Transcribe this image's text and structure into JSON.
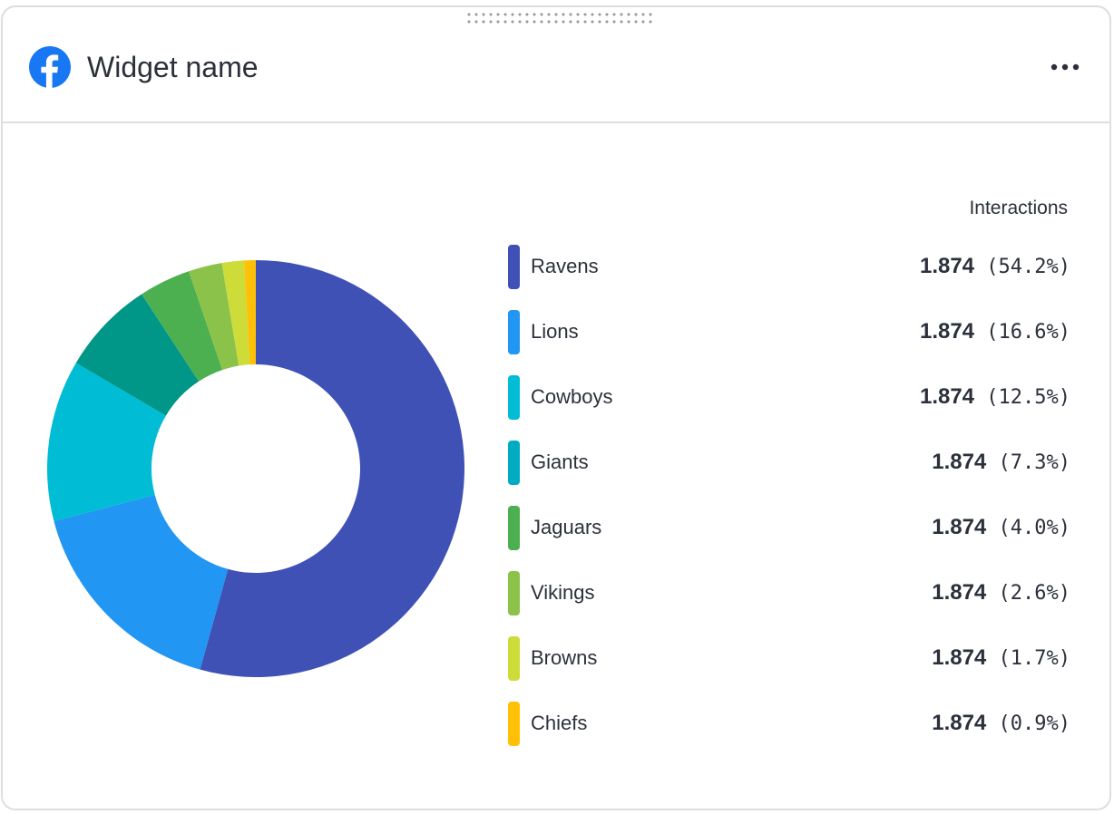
{
  "widget": {
    "title": "Widget name",
    "icon": "facebook-icon",
    "menu_icon": "more-horizontal-icon",
    "drag_icon": "drag-handle-icon"
  },
  "chart_data": {
    "type": "pie",
    "variant": "donut",
    "value_header": "Interactions",
    "categories": [
      "Ravens",
      "Lions",
      "Cowboys",
      "Giants",
      "Jaguars",
      "Vikings",
      "Browns",
      "Chiefs"
    ],
    "values": [
      54.2,
      16.6,
      12.5,
      7.3,
      4.0,
      2.6,
      1.7,
      0.9
    ],
    "value_labels": [
      "1.874",
      "1.874",
      "1.874",
      "1.874",
      "1.874",
      "1.874",
      "1.874",
      "1.874"
    ],
    "percent_labels": [
      "(54.2%)",
      "(16.6%)",
      "(12.5%)",
      "(7.3%)",
      "(4.0%)",
      "(2.6%)",
      "(1.7%)",
      "(0.9%)"
    ],
    "colors": [
      "#3f51b5",
      "#2196f3",
      "#00bcd4",
      "#00acc1",
      "#4caf50",
      "#8bc34a",
      "#cddc39",
      "#ffc107"
    ],
    "segment_colors": [
      "#3f51b5",
      "#2196f3",
      "#00bcd4",
      "#009688",
      "#4caf50",
      "#8bc34a",
      "#cddc39",
      "#ffc107"
    ],
    "legend_position": "right"
  }
}
